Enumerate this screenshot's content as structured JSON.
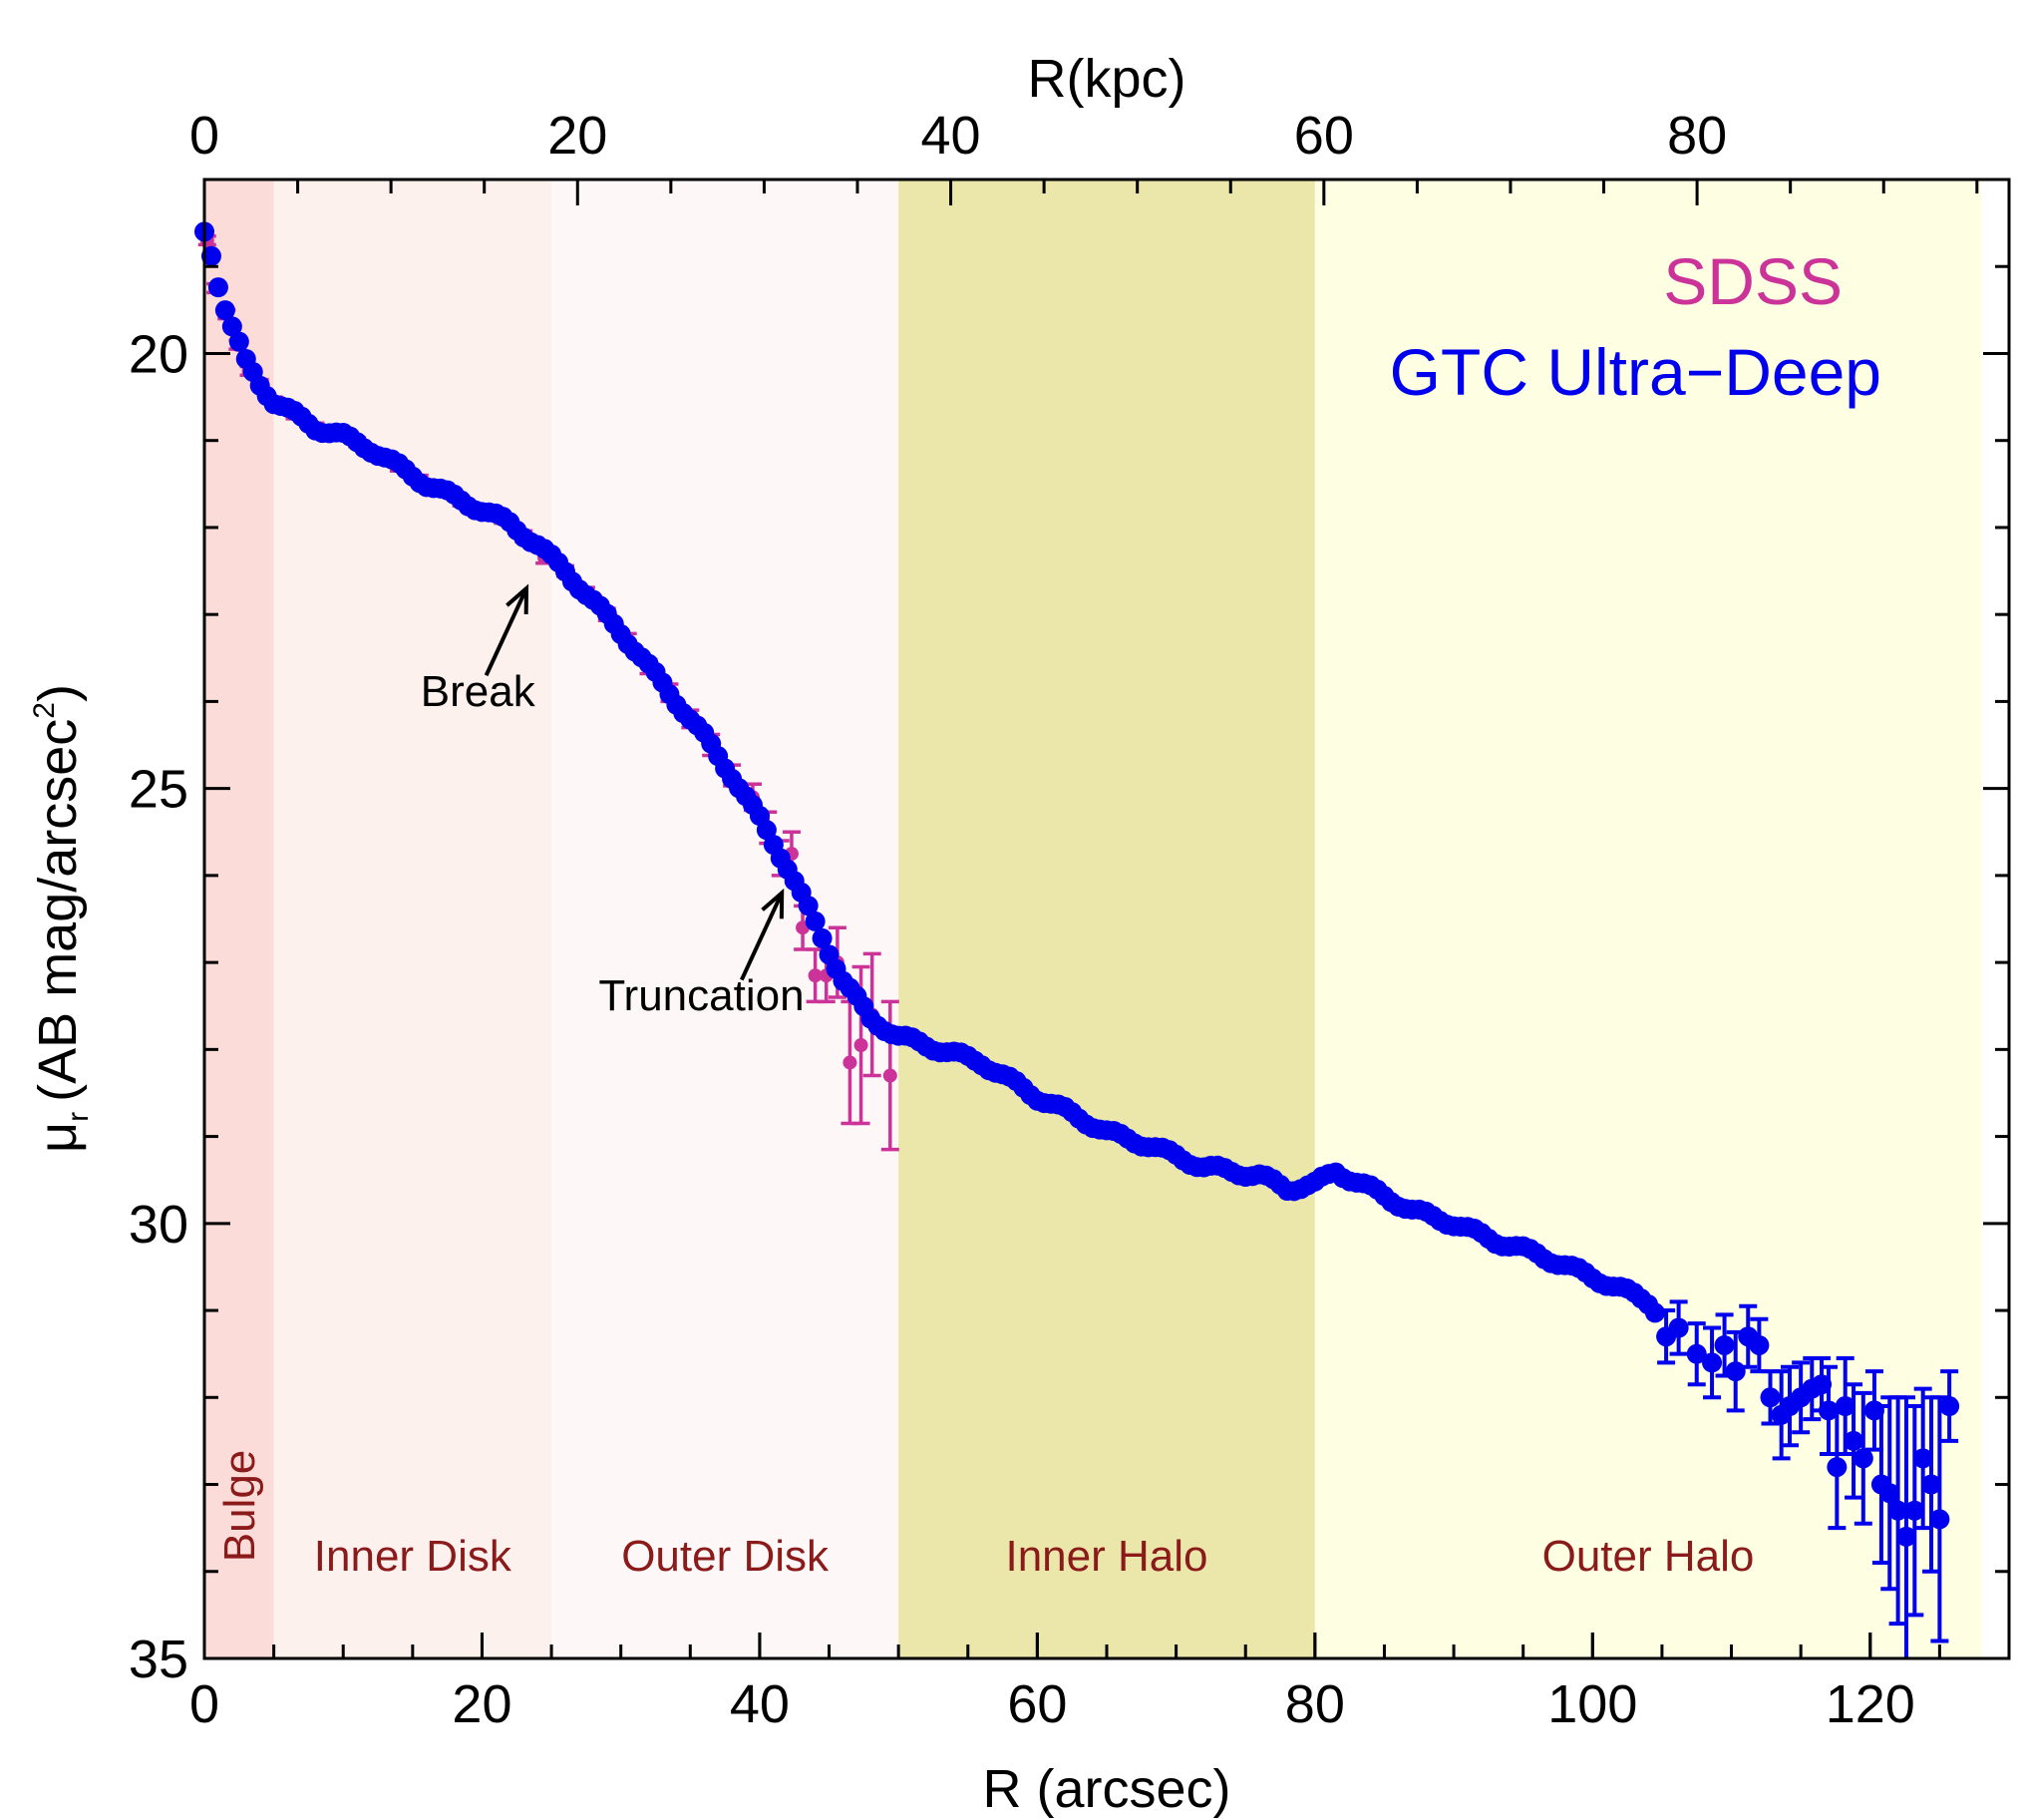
{
  "chart_data": {
    "type": "scatter",
    "x_label": "R (arcsec)",
    "x_top_label": "R(kpc)",
    "y_label_main": "μ",
    "y_label_sub": "r",
    "y_label_rest": "(AB mag/arcsec",
    "y_label_sup": "2",
    "y_label_close": ")",
    "xlim": [
      0,
      130
    ],
    "ylim": [
      35,
      18
    ],
    "kpc_per_arcsec": 0.744,
    "x_ticks": [
      0,
      20,
      40,
      60,
      80,
      100,
      120
    ],
    "x_top_ticks": [
      0,
      20,
      40,
      60,
      80
    ],
    "y_ticks": [
      20,
      25,
      30,
      35
    ],
    "regions": [
      {
        "name": "Bulge",
        "x0": 0,
        "x1": 5,
        "color": "#fbdcd8",
        "label_color": "#8b1a1a",
        "vertical": true
      },
      {
        "name": "Inner Disk",
        "x0": 5,
        "x1": 25,
        "color": "#fdf1ee",
        "label_color": "#8b1a1a",
        "vertical": false
      },
      {
        "name": "Outer Disk",
        "x0": 25,
        "x1": 50,
        "color": "#fdf8f7",
        "label_color": "#8b1a1a",
        "vertical": false
      },
      {
        "name": "Inner Halo",
        "x0": 50,
        "x1": 80,
        "color": "#ebe6a9",
        "label_color": "#8b1a1a",
        "vertical": false
      },
      {
        "name": "Outer Halo",
        "x0": 80,
        "x1": 128,
        "color": "#fefee3",
        "label_color": "#8b1a1a",
        "vertical": false
      }
    ],
    "legend": [
      {
        "label": "SDSS",
        "color": "#cc3399"
      },
      {
        "label": "GTC Ultra−Deep",
        "color": "#0000ee"
      }
    ],
    "annotations": [
      {
        "text": "Break",
        "x": 19.7,
        "y": 24.05,
        "arrow_from": [
          20.3,
          23.7
        ],
        "arrow_to": [
          23.2,
          22.7
        ]
      },
      {
        "text": "Truncation",
        "x": 35.8,
        "y": 27.55,
        "arrow_from": [
          38.7,
          27.2
        ],
        "arrow_to": [
          41.6,
          26.2
        ]
      }
    ],
    "series": [
      {
        "name": "GTC Ultra−Deep",
        "color": "#0000ee",
        "anchors": [
          [
            0.0,
            18.6
          ],
          [
            0.6,
            18.9
          ],
          [
            1.2,
            19.35
          ],
          [
            2.0,
            19.7
          ],
          [
            3.0,
            20.1
          ],
          [
            4.0,
            20.35
          ],
          [
            5.0,
            20.55
          ],
          [
            6.5,
            20.7
          ],
          [
            8.0,
            20.85
          ],
          [
            10.0,
            20.95
          ],
          [
            12.0,
            21.1
          ],
          [
            14.0,
            21.3
          ],
          [
            16.0,
            21.5
          ],
          [
            18.0,
            21.65
          ],
          [
            20.0,
            21.8
          ],
          [
            22.0,
            21.95
          ],
          [
            24.0,
            22.2
          ],
          [
            26.0,
            22.5
          ],
          [
            28.0,
            22.85
          ],
          [
            30.0,
            23.2
          ],
          [
            32.0,
            23.6
          ],
          [
            34.0,
            24.0
          ],
          [
            36.0,
            24.4
          ],
          [
            38.0,
            24.85
          ],
          [
            40.0,
            25.35
          ],
          [
            42.0,
            25.9
          ],
          [
            44.0,
            26.55
          ],
          [
            46.0,
            27.2
          ],
          [
            48.0,
            27.65
          ],
          [
            50.0,
            27.85
          ],
          [
            53.0,
            28.0
          ],
          [
            56.0,
            28.15
          ],
          [
            60.0,
            28.55
          ],
          [
            62.0,
            28.7
          ],
          [
            65.0,
            28.95
          ],
          [
            68.0,
            29.1
          ],
          [
            72.0,
            29.35
          ],
          [
            76.0,
            29.45
          ],
          [
            78.0,
            29.6
          ],
          [
            80.0,
            29.55
          ],
          [
            81.5,
            29.4
          ],
          [
            84.0,
            29.6
          ],
          [
            87.0,
            29.85
          ],
          [
            90.0,
            30.0
          ],
          [
            93.0,
            30.2
          ],
          [
            96.0,
            30.35
          ],
          [
            99.0,
            30.55
          ],
          [
            102.0,
            30.75
          ],
          [
            104.0,
            30.9
          ],
          [
            106.0,
            31.25
          ],
          [
            108.0,
            31.45
          ],
          [
            110.0,
            31.5
          ],
          [
            112.0,
            31.75
          ],
          [
            114.0,
            32.0
          ],
          [
            116.0,
            32.2
          ],
          [
            118.0,
            32.5
          ],
          [
            120.0,
            32.9
          ],
          [
            122.0,
            33.3
          ],
          [
            124.0,
            33.4
          ],
          [
            126.0,
            33.3
          ]
        ],
        "step": 0.5,
        "error_start_x": 104.5,
        "error_points": [
          [
            105.3,
            31.3,
            0.3
          ],
          [
            106.2,
            31.2,
            0.3
          ],
          [
            107.5,
            31.5,
            0.35
          ],
          [
            108.6,
            31.6,
            0.4
          ],
          [
            109.5,
            31.4,
            0.35
          ],
          [
            110.3,
            31.7,
            0.45
          ],
          [
            111.2,
            31.3,
            0.35
          ],
          [
            112.0,
            31.4,
            0.3
          ],
          [
            112.8,
            32.0,
            0.3
          ],
          [
            113.6,
            32.2,
            0.5
          ],
          [
            114.2,
            32.1,
            0.45
          ],
          [
            115.0,
            32.0,
            0.4
          ],
          [
            115.8,
            31.9,
            0.35
          ],
          [
            116.5,
            31.85,
            0.3
          ],
          [
            117.0,
            32.15,
            0.5
          ],
          [
            117.6,
            32.8,
            0.7
          ],
          [
            118.2,
            32.1,
            0.55
          ],
          [
            118.8,
            32.5,
            0.65
          ],
          [
            119.5,
            32.7,
            0.75
          ],
          [
            120.3,
            32.15,
            0.45
          ],
          [
            120.8,
            33.0,
            0.9
          ],
          [
            121.4,
            33.1,
            1.1
          ],
          [
            122.0,
            33.3,
            1.3
          ],
          [
            122.6,
            33.6,
            1.6
          ],
          [
            123.2,
            33.3,
            1.2
          ],
          [
            123.8,
            32.7,
            0.8
          ],
          [
            124.4,
            33.0,
            1.0
          ],
          [
            125.0,
            33.4,
            1.4
          ],
          [
            125.7,
            32.1,
            0.4
          ]
        ]
      },
      {
        "name": "SDSS",
        "color": "#cc3399",
        "points": [
          [
            0.2,
            18.7,
            0.05
          ],
          [
            0.8,
            19.25,
            0.05
          ],
          [
            1.6,
            19.55,
            0.05
          ],
          [
            2.4,
            19.9,
            0.05
          ],
          [
            3.2,
            20.2,
            0.05
          ],
          [
            4.0,
            20.35,
            0.05
          ],
          [
            5.0,
            20.55,
            0.05
          ],
          [
            6.5,
            20.7,
            0.05
          ],
          [
            8.0,
            20.85,
            0.05
          ],
          [
            9.5,
            20.92,
            0.05
          ],
          [
            11.0,
            21.02,
            0.05
          ],
          [
            12.5,
            21.18,
            0.05
          ],
          [
            14.0,
            21.3,
            0.05
          ],
          [
            15.5,
            21.45,
            0.05
          ],
          [
            17.0,
            21.58,
            0.05
          ],
          [
            18.5,
            21.7,
            0.05
          ],
          [
            20.0,
            21.8,
            0.05
          ],
          [
            21.5,
            21.9,
            0.05
          ],
          [
            23.0,
            22.1,
            0.06
          ],
          [
            24.5,
            22.35,
            0.06
          ],
          [
            26.0,
            22.5,
            0.06
          ],
          [
            27.5,
            22.75,
            0.06
          ],
          [
            29.0,
            23.0,
            0.07
          ],
          [
            30.5,
            23.3,
            0.08
          ],
          [
            32.0,
            23.6,
            0.08
          ],
          [
            33.5,
            23.9,
            0.1
          ],
          [
            35.0,
            24.2,
            0.1
          ],
          [
            36.5,
            24.5,
            0.12
          ],
          [
            38.0,
            24.85,
            0.12
          ],
          [
            39.5,
            25.1,
            0.15
          ],
          [
            40.6,
            25.45,
            0.18
          ],
          [
            41.5,
            25.8,
            0.2
          ],
          [
            42.3,
            25.75,
            0.25
          ],
          [
            43.1,
            26.6,
            0.25
          ],
          [
            44.0,
            27.15,
            0.3
          ],
          [
            44.8,
            27.15,
            0.3
          ],
          [
            45.6,
            27.0,
            0.4
          ],
          [
            46.5,
            28.15,
            0.7
          ],
          [
            47.3,
            27.95,
            0.9
          ],
          [
            48.1,
            27.6,
            0.7
          ],
          [
            49.4,
            28.3,
            0.85
          ]
        ]
      }
    ]
  }
}
